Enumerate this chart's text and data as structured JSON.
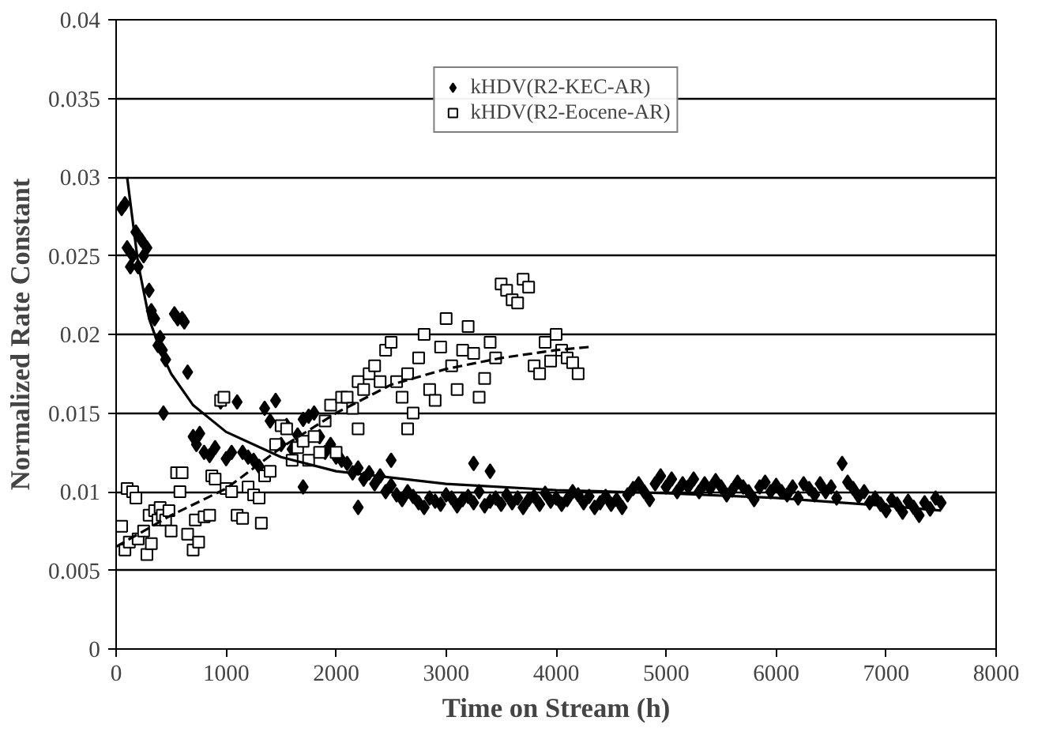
{
  "chart_data": {
    "type": "scatter",
    "xlabel": "Time on Stream (h)",
    "ylabel": "Normalized Rate Constant",
    "xlim": [
      0,
      8000
    ],
    "xticks": [
      0,
      1000,
      2000,
      3000,
      4000,
      5000,
      6000,
      7000,
      8000
    ],
    "ylim": [
      0,
      0.04
    ],
    "yticks": [
      0,
      0.005,
      0.01,
      0.015,
      0.02,
      0.025,
      0.03,
      0.035,
      0.04
    ],
    "grid": "y",
    "legend": "top",
    "series": [
      {
        "name": "kHDV(R2-KEC-AR)",
        "marker": "diamond",
        "color": "#000000",
        "x": [
          50,
          80,
          100,
          130,
          150,
          180,
          200,
          230,
          250,
          280,
          300,
          320,
          350,
          380,
          400,
          420,
          450,
          430,
          530,
          560,
          600,
          620,
          650,
          700,
          730,
          760,
          800,
          850,
          900,
          950,
          1000,
          1050,
          1100,
          1150,
          1200,
          1250,
          1300,
          1350,
          1400,
          1450,
          1500,
          1550,
          1600,
          1650,
          1700,
          1750,
          1800,
          1700,
          1850,
          1900,
          1950,
          2000,
          2050,
          2100,
          2150,
          2200,
          2250,
          2200,
          2300,
          2350,
          2400,
          2450,
          2500,
          2550,
          2600,
          2650,
          2700,
          2750,
          2800,
          2850,
          2900,
          2950,
          3000,
          3050,
          3100,
          3150,
          3200,
          3250,
          3300,
          3350,
          3400,
          3450,
          3500,
          3550,
          3600,
          3650,
          3700,
          3750,
          3800,
          3850,
          3900,
          3950,
          4000,
          4050,
          4100,
          4150,
          4200,
          4250,
          4300,
          4350,
          4400,
          4450,
          4500,
          4550,
          4600,
          4650,
          4700,
          4750,
          4800,
          4850,
          4900,
          4950,
          5000,
          5050,
          5100,
          5150,
          5200,
          5250,
          5300,
          5350,
          5400,
          5450,
          5500,
          5550,
          5600,
          5650,
          5700,
          5750,
          5800,
          5850,
          5900,
          5950,
          6000,
          6050,
          6100,
          6150,
          6200,
          6250,
          6300,
          6350,
          6400,
          6450,
          6500,
          6550,
          6600,
          6650,
          6700,
          6750,
          6800,
          6850,
          6900,
          6950,
          7000,
          7050,
          7100,
          7150,
          7200,
          7250,
          7300,
          7350,
          7400,
          7450,
          7500,
          2500,
          3250,
          3400
        ],
        "values": [
          0.028,
          0.0283,
          0.0255,
          0.0243,
          0.025,
          0.0265,
          0.0243,
          0.026,
          0.025,
          0.0255,
          0.0228,
          0.0215,
          0.021,
          0.0193,
          0.0198,
          0.019,
          0.0184,
          0.015,
          0.0213,
          0.021,
          0.021,
          0.0208,
          0.0176,
          0.0135,
          0.013,
          0.0137,
          0.0125,
          0.0123,
          0.0128,
          0.0157,
          0.0121,
          0.0125,
          0.0157,
          0.0125,
          0.0122,
          0.012,
          0.0116,
          0.0153,
          0.0145,
          0.0158,
          0.013,
          0.0142,
          0.0127,
          0.0136,
          0.0146,
          0.0148,
          0.015,
          0.0103,
          0.0135,
          0.0125,
          0.013,
          0.0122,
          0.012,
          0.0118,
          0.0112,
          0.0115,
          0.0108,
          0.009,
          0.0112,
          0.0105,
          0.011,
          0.01,
          0.0104,
          0.0098,
          0.0095,
          0.01,
          0.0097,
          0.0093,
          0.009,
          0.0096,
          0.0094,
          0.0092,
          0.0098,
          0.0096,
          0.0091,
          0.0095,
          0.0097,
          0.0093,
          0.01,
          0.0091,
          0.0094,
          0.0096,
          0.0092,
          0.0098,
          0.0093,
          0.0096,
          0.009,
          0.0095,
          0.0097,
          0.0092,
          0.0099,
          0.0094,
          0.0096,
          0.0092,
          0.0095,
          0.01,
          0.0098,
          0.0093,
          0.0097,
          0.009,
          0.0093,
          0.0097,
          0.0092,
          0.0095,
          0.009,
          0.0098,
          0.0102,
          0.0105,
          0.01,
          0.0095,
          0.0105,
          0.011,
          0.0103,
          0.0108,
          0.01,
          0.0105,
          0.0103,
          0.0108,
          0.01,
          0.0105,
          0.0102,
          0.0107,
          0.0103,
          0.0098,
          0.0101,
          0.0106,
          0.0103,
          0.01,
          0.0095,
          0.0103,
          0.0106,
          0.01,
          0.0104,
          0.01,
          0.0098,
          0.0103,
          0.0096,
          0.0105,
          0.0102,
          0.0098,
          0.0105,
          0.01,
          0.0103,
          0.0096,
          0.0118,
          0.0106,
          0.0102,
          0.0097,
          0.01,
          0.0093,
          0.0096,
          0.0092,
          0.0088,
          0.0095,
          0.0092,
          0.0087,
          0.0094,
          0.009,
          0.0085,
          0.0093,
          0.0089,
          0.0096,
          0.0093,
          0.012,
          0.0118,
          0.0113
        ]
      },
      {
        "name": "kHDV(R2-Eocene-AR)",
        "marker": "square",
        "color": "#000000",
        "x": [
          50,
          80,
          100,
          120,
          150,
          180,
          200,
          250,
          280,
          300,
          320,
          350,
          380,
          400,
          420,
          450,
          480,
          500,
          550,
          580,
          600,
          650,
          700,
          720,
          750,
          800,
          850,
          870,
          900,
          950,
          980,
          1000,
          1050,
          1100,
          1150,
          1200,
          1250,
          1300,
          1320,
          1350,
          1400,
          1450,
          1500,
          1550,
          1600,
          1650,
          1700,
          1750,
          1800,
          1850,
          1900,
          1950,
          2000,
          2050,
          2100,
          2150,
          2200,
          2250,
          2300,
          2350,
          2400,
          2450,
          2500,
          2550,
          2600,
          2650,
          2700,
          2750,
          2800,
          2850,
          2900,
          2950,
          3000,
          3050,
          3100,
          3150,
          3200,
          3250,
          3300,
          3350,
          3400,
          3450,
          3500,
          3550,
          3600,
          3650,
          3700,
          3750,
          3800,
          3850,
          3900,
          3950,
          4000,
          4050,
          4100,
          4150,
          4200,
          2200,
          2650
        ],
        "values": [
          0.0078,
          0.0063,
          0.0102,
          0.0068,
          0.01,
          0.0096,
          0.007,
          0.0075,
          0.006,
          0.0085,
          0.0067,
          0.0088,
          0.0082,
          0.009,
          0.0085,
          0.0082,
          0.0088,
          0.0075,
          0.0112,
          0.01,
          0.0112,
          0.0073,
          0.0063,
          0.0082,
          0.0068,
          0.0084,
          0.0085,
          0.011,
          0.0108,
          0.0158,
          0.016,
          0.0102,
          0.01,
          0.0085,
          0.0083,
          0.0103,
          0.0098,
          0.0096,
          0.008,
          0.011,
          0.0113,
          0.013,
          0.0142,
          0.014,
          0.012,
          0.0128,
          0.0132,
          0.012,
          0.0135,
          0.0125,
          0.0145,
          0.0155,
          0.0125,
          0.016,
          0.016,
          0.0153,
          0.017,
          0.0165,
          0.0175,
          0.018,
          0.017,
          0.019,
          0.0195,
          0.017,
          0.016,
          0.0175,
          0.015,
          0.0185,
          0.02,
          0.0165,
          0.0158,
          0.0192,
          0.021,
          0.018,
          0.0165,
          0.019,
          0.0205,
          0.0188,
          0.016,
          0.0172,
          0.0195,
          0.0185,
          0.0232,
          0.0228,
          0.0222,
          0.022,
          0.0235,
          0.023,
          0.018,
          0.0175,
          0.0195,
          0.0183,
          0.02,
          0.019,
          0.0185,
          0.0182,
          0.0175,
          0.014,
          0.014
        ]
      },
      {
        "type": "line",
        "line_style": "solid",
        "color": "#000000",
        "x": [
          100,
          200,
          300,
          400,
          500,
          700,
          1000,
          1500,
          2000,
          3000,
          4000,
          5000,
          6000,
          7000,
          7500
        ],
        "values": [
          0.03,
          0.0245,
          0.021,
          0.019,
          0.0175,
          0.0155,
          0.0138,
          0.0122,
          0.0113,
          0.0105,
          0.0101,
          0.0099,
          0.0096,
          0.0091,
          0.0088
        ]
      },
      {
        "type": "line",
        "line_style": "dashed",
        "color": "#000000",
        "x": [
          0,
          500,
          1000,
          1500,
          2000,
          2500,
          3000,
          3500,
          4000,
          4300
        ],
        "values": [
          0.0065,
          0.0085,
          0.0102,
          0.0128,
          0.015,
          0.0168,
          0.0178,
          0.0185,
          0.019,
          0.0192
        ]
      }
    ]
  }
}
